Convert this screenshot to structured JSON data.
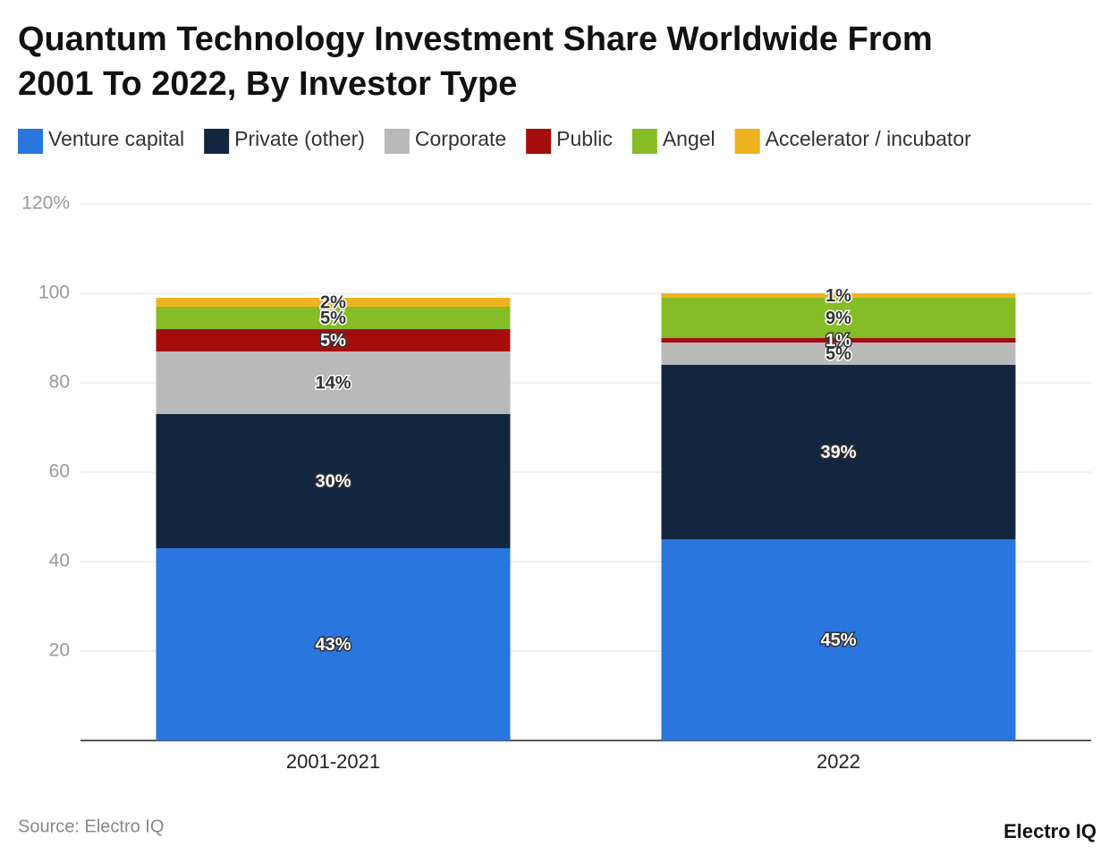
{
  "chart_data": {
    "type": "stacked-bar",
    "title": "Quantum Technology Investment Share Worldwide From 2001 To 2022, By Investor Type",
    "categories": [
      "2001-2021",
      "2022"
    ],
    "series": [
      {
        "name": "Venture capital",
        "color": "#2876de",
        "values": [
          43,
          45
        ],
        "value_labels": [
          "43%",
          "45%"
        ]
      },
      {
        "name": "Private (other)",
        "color": "#12263f",
        "values": [
          30,
          39
        ],
        "value_labels": [
          "30%",
          "39%"
        ]
      },
      {
        "name": "Corporate",
        "color": "#b9b9b9",
        "values": [
          14,
          5
        ],
        "value_labels": [
          "14%",
          "5%"
        ]
      },
      {
        "name": "Public",
        "color": "#a50d0d",
        "values": [
          5,
          1
        ],
        "value_labels": [
          "5%",
          "1%"
        ]
      },
      {
        "name": "Angel",
        "color": "#86bc25",
        "values": [
          5,
          9
        ],
        "value_labels": [
          "5%",
          "9%"
        ]
      },
      {
        "name": "Accelerator / incubator",
        "color": "#efb320",
        "values": [
          2,
          1
        ],
        "value_labels": [
          "2%",
          "1%"
        ]
      }
    ],
    "ylim": [
      0,
      120
    ],
    "yticks": [
      20,
      40,
      60,
      80,
      100,
      {
        "value": 120,
        "label": "120%"
      }
    ],
    "grid": true,
    "source": "Source: Electro IQ",
    "brand": "Electro IQ"
  }
}
